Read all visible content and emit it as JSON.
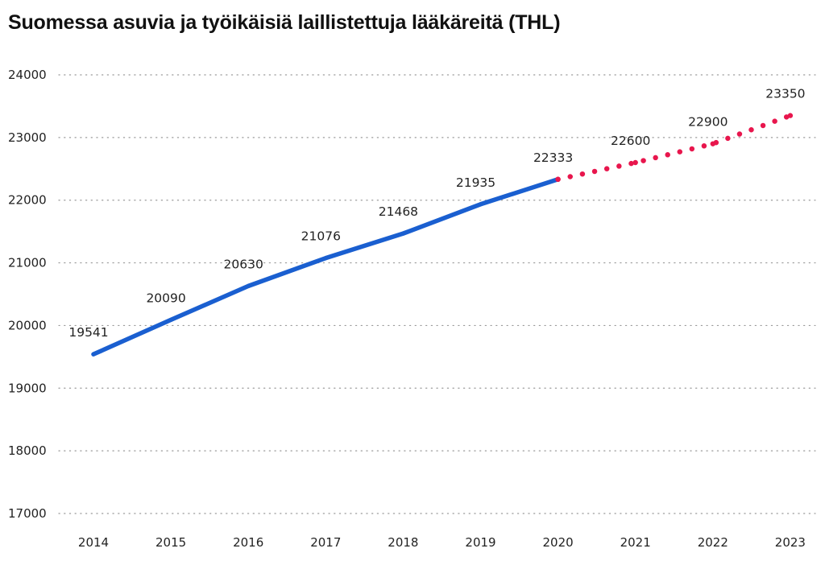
{
  "chart_data": {
    "type": "line",
    "title": "Suomessa asuvia ja työikäisiä laillistettuja lääkäreitä (THL)",
    "xlabel": "",
    "ylabel": "",
    "x": [
      "2014",
      "2015",
      "2016",
      "2017",
      "2018",
      "2019",
      "2020",
      "2021",
      "2022",
      "2023"
    ],
    "y_ticks": [
      "17000",
      "18000",
      "19000",
      "20000",
      "21000",
      "22000",
      "23000",
      "24000"
    ],
    "ylim": [
      17000,
      24000
    ],
    "grid": "horizontal-dotted",
    "series": [
      {
        "style": "solid",
        "color": "#1a5fd0",
        "x": [
          "2014",
          "2015",
          "2016",
          "2017",
          "2018",
          "2019",
          "2020"
        ],
        "values": [
          19541,
          20090,
          20630,
          21076,
          21468,
          21935,
          22333
        ],
        "labels": [
          "19541",
          "20090",
          "20630",
          "21076",
          "21468",
          "21935",
          "22333"
        ]
      },
      {
        "style": "dotted",
        "color": "#e8164d",
        "x": [
          "2020",
          "2021",
          "2022",
          "2023"
        ],
        "values": [
          22333,
          22600,
          22900,
          23350
        ],
        "labels": [
          "",
          "22600",
          "22900",
          "23350"
        ]
      }
    ]
  }
}
